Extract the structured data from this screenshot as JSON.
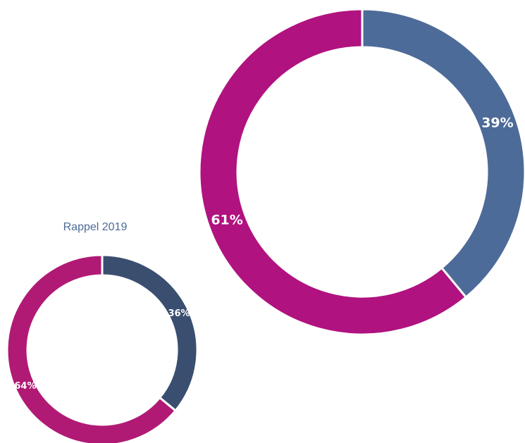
{
  "chart_data": [
    {
      "type": "pie",
      "values": [
        39,
        61
      ],
      "value_labels": [
        "39%",
        "61%"
      ],
      "colors": [
        "#4d6b98",
        "#b0127f"
      ]
    },
    {
      "type": "pie",
      "title": "Rappel 2019",
      "values": [
        36,
        64
      ],
      "value_labels": [
        "36%",
        "64%"
      ],
      "colors": [
        "#3a4e70",
        "#b01a74"
      ]
    }
  ]
}
